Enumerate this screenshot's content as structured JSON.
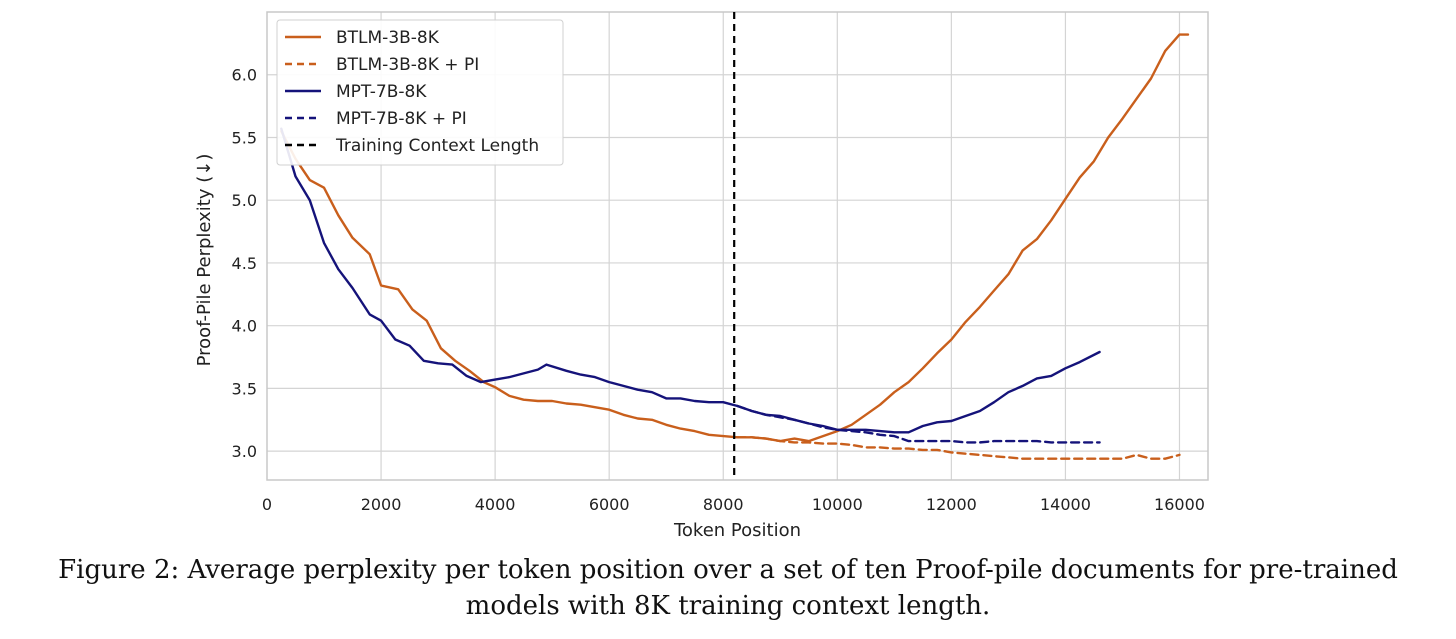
{
  "caption": {
    "line1": "Figure 2: Average perplexity per token position over a set of ten Proof-pile documents for pre-trained",
    "line2": "models with 8K training context length."
  },
  "chart_data": {
    "type": "line",
    "xlabel": "Token Position",
    "ylabel": "Proof-Pile Perplexity (↓)",
    "xlim": [
      0,
      16500
    ],
    "ylim": [
      2.77,
      6.5
    ],
    "xticks": [
      0,
      2000,
      4000,
      6000,
      8000,
      10000,
      12000,
      14000,
      16000
    ],
    "yticks": [
      3.0,
      3.5,
      4.0,
      4.5,
      5.0,
      5.5,
      6.0
    ],
    "grid": true,
    "legend_position": "top-left",
    "vline": {
      "x": 8192,
      "name": "Training Context Length",
      "color": "#000000",
      "dash": "dashed"
    },
    "series": [
      {
        "name": "BTLM-3B-8K",
        "color": "#c95f1c",
        "dash": "solid",
        "x": [
          250,
          500,
          750,
          1000,
          1250,
          1500,
          1800,
          2000,
          2300,
          2550,
          2800,
          3050,
          3300,
          3550,
          3800,
          4000,
          4250,
          4500,
          4750,
          5000,
          5250,
          5500,
          5750,
          6000,
          6250,
          6500,
          6750,
          7000,
          7250,
          7500,
          7750,
          8000,
          8250,
          8500,
          8750,
          9000,
          9250,
          9500,
          9750,
          10000,
          10250,
          10500,
          10750,
          11000,
          11250,
          11500,
          11750,
          12000,
          12250,
          12500,
          12750,
          13000,
          13250,
          13500,
          13750,
          14000,
          14250,
          14500,
          14750,
          15000,
          15250,
          15500,
          15750,
          16000,
          16150
        ],
        "values": [
          5.55,
          5.33,
          5.16,
          5.1,
          4.88,
          4.7,
          4.57,
          4.32,
          4.29,
          4.13,
          4.04,
          3.82,
          3.72,
          3.64,
          3.55,
          3.51,
          3.44,
          3.41,
          3.4,
          3.4,
          3.38,
          3.37,
          3.35,
          3.33,
          3.29,
          3.26,
          3.25,
          3.21,
          3.18,
          3.16,
          3.13,
          3.12,
          3.11,
          3.11,
          3.1,
          3.08,
          3.1,
          3.08,
          3.12,
          3.16,
          3.21,
          3.29,
          3.37,
          3.47,
          3.55,
          3.66,
          3.78,
          3.89,
          4.03,
          4.15,
          4.28,
          4.41,
          4.6,
          4.69,
          4.84,
          5.01,
          5.18,
          5.31,
          5.5,
          5.65,
          5.81,
          5.97,
          6.19,
          6.32,
          6.32
        ]
      },
      {
        "name": "BTLM-3B-8K + PI",
        "color": "#c95f1c",
        "dash": "dashed",
        "x": [
          8250,
          8500,
          8750,
          9000,
          9250,
          9500,
          9750,
          10000,
          10250,
          10500,
          10750,
          11000,
          11250,
          11500,
          11750,
          12000,
          12250,
          12500,
          12750,
          13000,
          13250,
          13500,
          13750,
          14000,
          14250,
          14500,
          14750,
          15000,
          15250,
          15500,
          15750,
          16000
        ],
        "values": [
          3.11,
          3.11,
          3.1,
          3.08,
          3.07,
          3.07,
          3.06,
          3.06,
          3.05,
          3.03,
          3.03,
          3.02,
          3.02,
          3.01,
          3.01,
          2.99,
          2.98,
          2.97,
          2.96,
          2.95,
          2.94,
          2.94,
          2.94,
          2.94,
          2.94,
          2.94,
          2.94,
          2.94,
          2.97,
          2.94,
          2.94,
          2.97
        ]
      },
      {
        "name": "MPT-7B-8K",
        "color": "#15137a",
        "dash": "solid",
        "x": [
          250,
          500,
          750,
          1000,
          1250,
          1500,
          1800,
          2000,
          2250,
          2500,
          2750,
          3000,
          3250,
          3500,
          3750,
          4000,
          4250,
          4500,
          4750,
          4900,
          5250,
          5500,
          5750,
          6000,
          6250,
          6500,
          6750,
          7000,
          7250,
          7500,
          7750,
          8000,
          8250,
          8500,
          8750,
          9000,
          9250,
          9500,
          9750,
          10000,
          10250,
          10500,
          10750,
          11000,
          11250,
          11500,
          11750,
          12000,
          12250,
          12500,
          12750,
          13000,
          13250,
          13500,
          13750,
          14000,
          14250,
          14600
        ],
        "values": [
          5.57,
          5.19,
          5.0,
          4.66,
          4.45,
          4.3,
          4.09,
          4.04,
          3.89,
          3.84,
          3.72,
          3.7,
          3.69,
          3.6,
          3.55,
          3.57,
          3.59,
          3.62,
          3.65,
          3.69,
          3.64,
          3.61,
          3.59,
          3.55,
          3.52,
          3.49,
          3.47,
          3.42,
          3.42,
          3.4,
          3.39,
          3.39,
          3.36,
          3.32,
          3.29,
          3.28,
          3.25,
          3.22,
          3.2,
          3.17,
          3.17,
          3.17,
          3.16,
          3.15,
          3.15,
          3.2,
          3.23,
          3.24,
          3.28,
          3.32,
          3.39,
          3.47,
          3.52,
          3.58,
          3.6,
          3.66,
          3.71,
          3.79
        ]
      },
      {
        "name": "MPT-7B-8K + PI",
        "color": "#15137a",
        "dash": "dashed",
        "x": [
          8250,
          8500,
          8750,
          9000,
          9250,
          9500,
          9750,
          10000,
          10250,
          10500,
          10750,
          11000,
          11250,
          11500,
          11750,
          12000,
          12250,
          12500,
          12750,
          13000,
          13250,
          13500,
          13750,
          14000,
          14250,
          14600
        ],
        "values": [
          3.36,
          3.32,
          3.29,
          3.27,
          3.25,
          3.22,
          3.19,
          3.17,
          3.16,
          3.15,
          3.13,
          3.12,
          3.08,
          3.08,
          3.08,
          3.08,
          3.07,
          3.07,
          3.08,
          3.08,
          3.08,
          3.08,
          3.07,
          3.07,
          3.07,
          3.07
        ]
      }
    ]
  }
}
